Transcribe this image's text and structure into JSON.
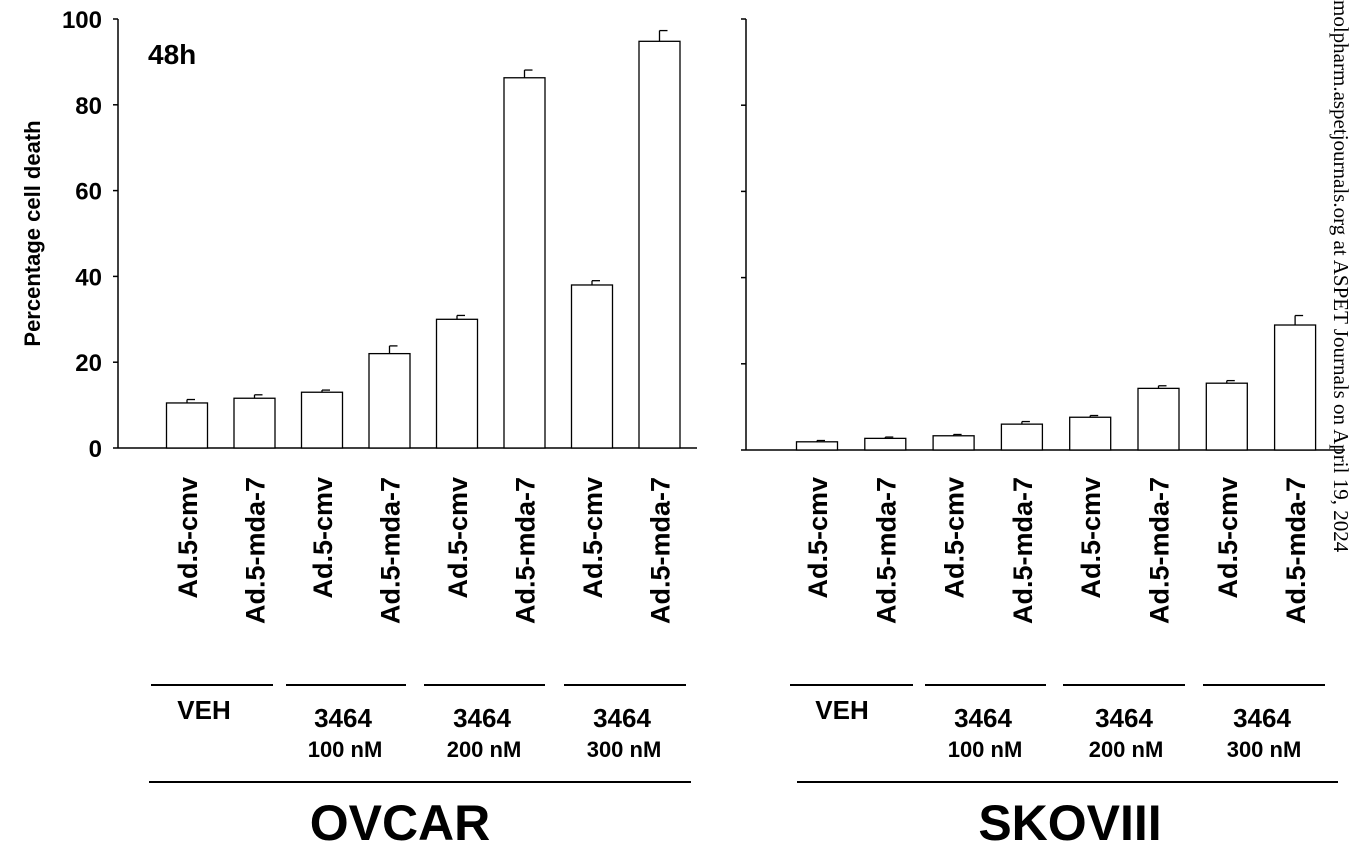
{
  "chart_data": [
    {
      "type": "bar",
      "title": "OVCAR",
      "ylabel": "Percentage cell death",
      "xlabel": "",
      "annotation": "48h",
      "ylim": [
        0,
        100
      ],
      "yticks": [
        0,
        20,
        40,
        60,
        80,
        100
      ],
      "categories": [
        "Ad.5-cmv",
        "Ad.5-mda-7",
        "Ad.5-cmv",
        "Ad.5-mda-7",
        "Ad.5-cmv",
        "Ad.5-mda-7",
        "Ad.5-cmv",
        "Ad.5-mda-7"
      ],
      "values": [
        10.5,
        11.6,
        13.0,
        22.0,
        30.0,
        86.3,
        38.0,
        94.8
      ],
      "errors": [
        0.8,
        0.8,
        0.5,
        1.8,
        0.9,
        1.8,
        1.0,
        2.5
      ],
      "groups": [
        {
          "label": "VEH",
          "sublabel": ""
        },
        {
          "label": "3464",
          "sublabel": "100 nM"
        },
        {
          "label": "3464",
          "sublabel": "200 nM"
        },
        {
          "label": "3464",
          "sublabel": "300 nM"
        }
      ],
      "bar_color": "#ffffff",
      "edge_color": "#000000"
    },
    {
      "type": "bar",
      "title": "SKOVIII",
      "ylabel": "",
      "xlabel": "",
      "ylim": [
        0,
        100
      ],
      "categories": [
        "Ad.5-cmv",
        "Ad.5-mda-7",
        "Ad.5-cmv",
        "Ad.5-mda-7",
        "Ad.5-cmv",
        "Ad.5-mda-7",
        "Ad.5-cmv",
        "Ad.5-mda-7"
      ],
      "values": [
        1.9,
        2.7,
        3.3,
        6.0,
        7.6,
        14.3,
        15.5,
        29.0
      ],
      "errors": [
        0.3,
        0.3,
        0.3,
        0.6,
        0.4,
        0.6,
        0.6,
        2.2
      ],
      "groups": [
        {
          "label": "VEH",
          "sublabel": ""
        },
        {
          "label": "3464",
          "sublabel": "100 nM"
        },
        {
          "label": "3464",
          "sublabel": "200 nM"
        },
        {
          "label": "3464",
          "sublabel": "300 nM"
        }
      ],
      "bar_color": "#ffffff",
      "edge_color": "#000000"
    }
  ],
  "watermark": "molpharm.aspetjournals.org at ASPET Journals on April 19, 2024"
}
